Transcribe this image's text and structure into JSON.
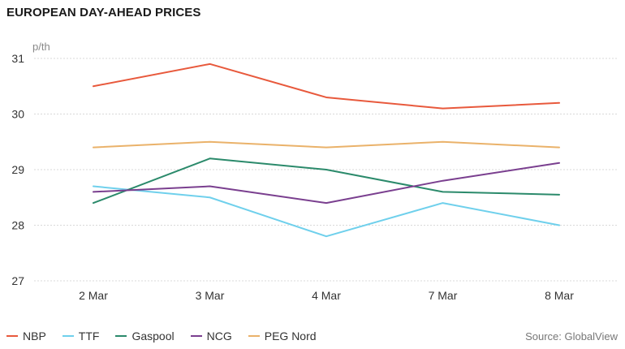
{
  "chart_data": {
    "type": "line",
    "title": "EUROPEAN DAY-AHEAD PRICES",
    "unit_label": "p/th",
    "categories": [
      "2 Mar",
      "3 Mar",
      "4 Mar",
      "7 Mar",
      "8 Mar"
    ],
    "ylim": [
      27,
      31.5
    ],
    "yticks": [
      27,
      28,
      29,
      30,
      31
    ],
    "grid": true,
    "legend_position": "bottom-left",
    "source": "Source: GlobalView",
    "series": [
      {
        "name": "NBP",
        "color": "#e8593c",
        "values": [
          30.5,
          30.9,
          30.3,
          30.1,
          30.2
        ]
      },
      {
        "name": "TTF",
        "color": "#6fd0ec",
        "values": [
          28.7,
          28.5,
          27.8,
          28.4,
          28.0
        ]
      },
      {
        "name": "Gaspool",
        "color": "#2b8a6b",
        "values": [
          28.4,
          29.2,
          29.0,
          28.6,
          28.55
        ]
      },
      {
        "name": "NCG",
        "color": "#7a3f8f",
        "values": [
          28.6,
          28.7,
          28.4,
          28.8,
          29.12
        ]
      },
      {
        "name": "PEG Nord",
        "color": "#eab26a",
        "values": [
          29.4,
          29.5,
          29.4,
          29.5,
          29.4
        ]
      }
    ]
  }
}
